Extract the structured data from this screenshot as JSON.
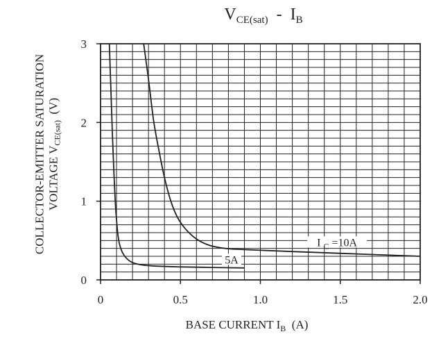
{
  "chart_data": {
    "type": "line",
    "title": {
      "main": "V",
      "main_sub": "CE(sat)",
      "separator": "-",
      "second": "I",
      "second_sub": "B"
    },
    "xlabel": {
      "pre": "BASE CURRENT I",
      "sub": "B",
      "post": "(A)"
    },
    "ylabel": {
      "line1": "COLLECTOR-EMITTER SATURATION",
      "line2_pre": "VOLTAGE V",
      "line2_sub": "CE(sat)",
      "line2_post": "(V)"
    },
    "xlim": [
      0,
      2.0
    ],
    "ylim": [
      0,
      3
    ],
    "x_ticks": [
      {
        "value": 0,
        "label": "0"
      },
      {
        "value": 0.5,
        "label": "0.5"
      },
      {
        "value": 1.0,
        "label": "1.0"
      },
      {
        "value": 1.5,
        "label": "1.5"
      },
      {
        "value": 2.0,
        "label": "2.0"
      }
    ],
    "y_ticks": [
      {
        "value": 0,
        "label": "0"
      },
      {
        "value": 1,
        "label": "1"
      },
      {
        "value": 2,
        "label": "2"
      },
      {
        "value": 3,
        "label": "3"
      }
    ],
    "grid": true,
    "grid_x_step": 0.1,
    "grid_y_step": 0.1,
    "series": [
      {
        "name": "5A",
        "label_prefix": "",
        "label_sub": "",
        "label_value": "5A",
        "label_at": [
          0.82,
          0.2
        ],
        "points": [
          [
            0.055,
            3.0
          ],
          [
            0.065,
            2.4
          ],
          [
            0.075,
            1.8
          ],
          [
            0.085,
            1.3
          ],
          [
            0.095,
            0.9
          ],
          [
            0.11,
            0.55
          ],
          [
            0.13,
            0.38
          ],
          [
            0.16,
            0.28
          ],
          [
            0.2,
            0.22
          ],
          [
            0.26,
            0.19
          ],
          [
            0.35,
            0.175
          ],
          [
            0.5,
            0.165
          ],
          [
            0.7,
            0.158
          ],
          [
            0.9,
            0.152
          ]
        ]
      },
      {
        "name": "I C =10A",
        "label_prefix": "I",
        "label_sub": "C",
        "label_value": "=10A",
        "label_at": [
          1.48,
          0.42
        ],
        "points": [
          [
            0.27,
            3.0
          ],
          [
            0.3,
            2.55
          ],
          [
            0.33,
            2.05
          ],
          [
            0.36,
            1.7
          ],
          [
            0.4,
            1.3
          ],
          [
            0.44,
            1.0
          ],
          [
            0.48,
            0.8
          ],
          [
            0.53,
            0.65
          ],
          [
            0.6,
            0.52
          ],
          [
            0.68,
            0.44
          ],
          [
            0.78,
            0.4
          ],
          [
            0.9,
            0.385
          ],
          [
            1.2,
            0.36
          ],
          [
            1.6,
            0.33
          ],
          [
            2.0,
            0.3
          ]
        ]
      }
    ]
  }
}
